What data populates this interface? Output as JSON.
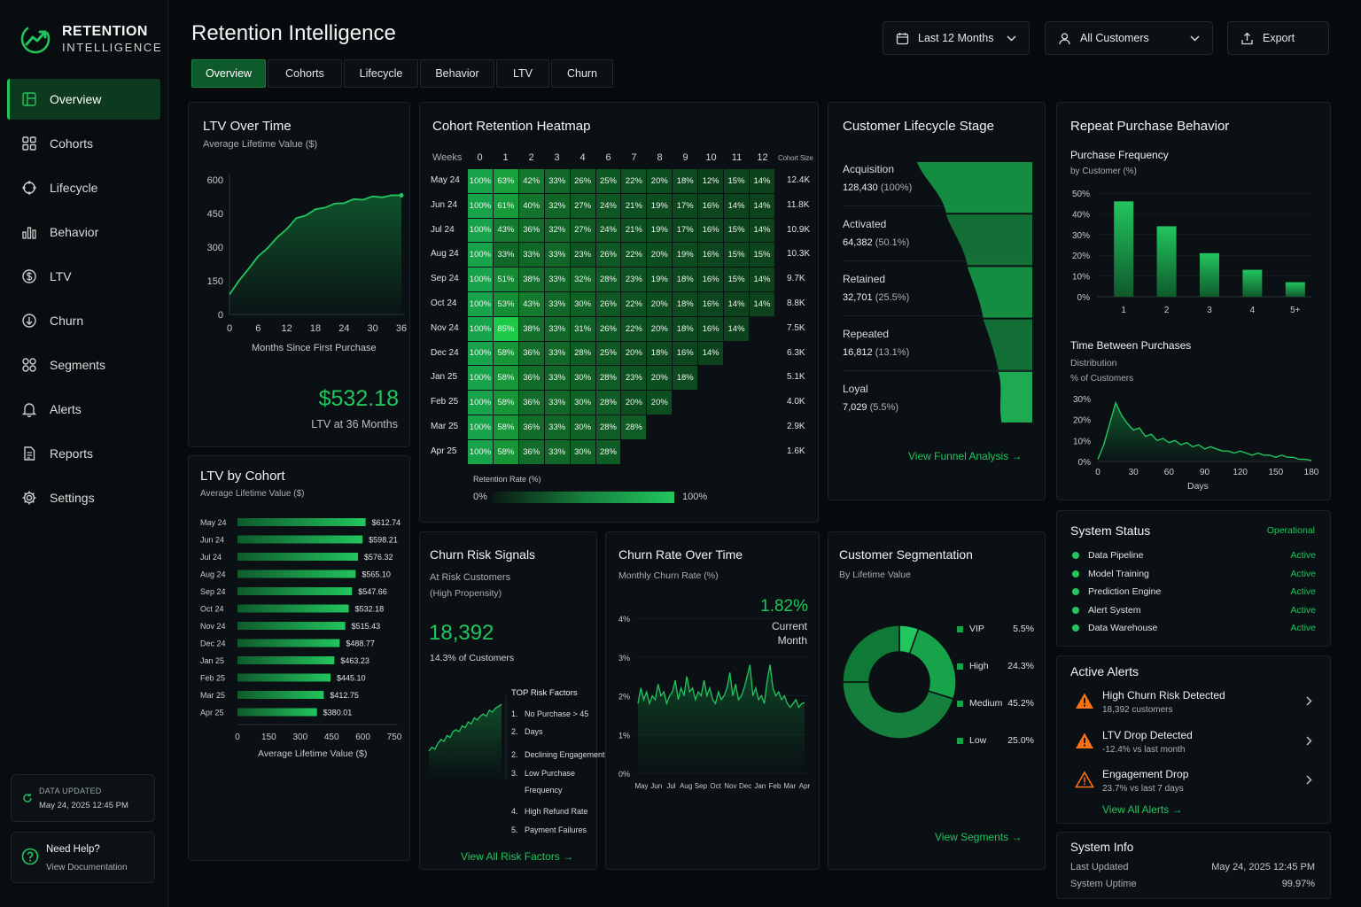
{
  "app": {
    "name_line1": "RETENTION",
    "name_line2": "INTELLIGENCE",
    "title": "Retention Intelligence"
  },
  "sidebar": {
    "items": [
      {
        "label": "Overview",
        "icon": "dashboard-icon",
        "active": true
      },
      {
        "label": "Cohorts",
        "icon": "grid-icon"
      },
      {
        "label": "Lifecycle",
        "icon": "cycle-icon"
      },
      {
        "label": "Behavior",
        "icon": "bar-chart-icon"
      },
      {
        "label": "LTV",
        "icon": "dollar-icon"
      },
      {
        "label": "Churn",
        "icon": "churn-icon"
      },
      {
        "label": "Segments",
        "icon": "segments-icon"
      },
      {
        "label": "Alerts",
        "icon": "bell-icon"
      },
      {
        "label": "Reports",
        "icon": "document-icon"
      },
      {
        "label": "Settings",
        "icon": "gear-icon"
      }
    ],
    "updated_label": "DATA UPDATED",
    "updated_value": "May 24, 2025 12:45 PM",
    "help_title": "Need Help?",
    "help_link": "View Documentation"
  },
  "header": {
    "date_filter": "Last 12 Months",
    "customer_filter": "All Customers",
    "export_label": "Export"
  },
  "tabs": [
    "Overview",
    "Cohorts",
    "Lifecycle",
    "Behavior",
    "LTV",
    "Churn"
  ],
  "ltv_time": {
    "title": "LTV Over Time",
    "subtitle": "Average Lifetime Value ($)",
    "xlabel": "Months Since First Purchase",
    "value": "$532.18",
    "value_label": "LTV at 36 Months"
  },
  "ltv_cohort": {
    "title": "LTV by Cohort",
    "subtitle": "Average Lifetime Value ($)",
    "xlabel": "Average Lifetime Value ($)"
  },
  "heatmap": {
    "title": "Cohort Retention Heatmap",
    "weeks_label": "Weeks",
    "size_label": "Cohort Size",
    "week_numbers": [
      "0",
      "1",
      "2",
      "3",
      "4",
      "6",
      "7",
      "8",
      "9",
      "10",
      "11",
      "12"
    ],
    "legend_label": "Retention Rate (%)",
    "legend_min": "0%",
    "legend_max": "100%",
    "rows": [
      {
        "cohort": "May 24",
        "size": "12.4K",
        "values": [
          100,
          63,
          42,
          33,
          26,
          25,
          22,
          20,
          18,
          12,
          15,
          14
        ]
      },
      {
        "cohort": "Jun 24",
        "size": "11.8K",
        "values": [
          100,
          61,
          40,
          32,
          27,
          24,
          21,
          19,
          17,
          16,
          14,
          14
        ]
      },
      {
        "cohort": "Jul 24",
        "size": "10.9K",
        "values": [
          100,
          43,
          36,
          32,
          27,
          24,
          21,
          19,
          17,
          16,
          15,
          14
        ]
      },
      {
        "cohort": "Aug 24",
        "size": "10.3K",
        "values": [
          100,
          33,
          33,
          33,
          23,
          26,
          22,
          20,
          19,
          16,
          15,
          15
        ]
      },
      {
        "cohort": "Sep 24",
        "size": "9.7K",
        "values": [
          100,
          51,
          38,
          33,
          32,
          28,
          23,
          19,
          18,
          16,
          15,
          14
        ]
      },
      {
        "cohort": "Oct 24",
        "size": "8.8K",
        "values": [
          100,
          53,
          43,
          33,
          30,
          26,
          22,
          20,
          18,
          16,
          14,
          14
        ]
      },
      {
        "cohort": "Nov 24",
        "size": "7.5K",
        "values": [
          100,
          85,
          38,
          33,
          31,
          26,
          22,
          20,
          18,
          16,
          14
        ]
      },
      {
        "cohort": "Dec 24",
        "size": "6.3K",
        "values": [
          100,
          58,
          36,
          33,
          28,
          25,
          20,
          18,
          16,
          14
        ]
      },
      {
        "cohort": "Jan 25",
        "size": "5.1K",
        "values": [
          100,
          58,
          36,
          33,
          30,
          28,
          23,
          20,
          18
        ]
      },
      {
        "cohort": "Feb 25",
        "size": "4.0K",
        "values": [
          100,
          58,
          36,
          33,
          30,
          28,
          20,
          20
        ]
      },
      {
        "cohort": "Mar 25",
        "size": "2.9K",
        "values": [
          100,
          58,
          36,
          33,
          30,
          28,
          28
        ]
      },
      {
        "cohort": "Apr 25",
        "size": "1.6K",
        "values": [
          100,
          58,
          36,
          33,
          30,
          28
        ]
      }
    ]
  },
  "lifecycle": {
    "title": "Customer Lifecycle Stage",
    "link": "View Funnel Analysis",
    "stages": [
      {
        "name": "Acquisition",
        "count": "128,430",
        "pct": "(100%)",
        "share": 1.0
      },
      {
        "name": "Activated",
        "count": "64,382",
        "pct": "(50.1%)",
        "share": 0.501
      },
      {
        "name": "Retained",
        "count": "32,701",
        "pct": "(25.5%)",
        "share": 0.255
      },
      {
        "name": "Repeated",
        "count": "16,812",
        "pct": "(13.1%)",
        "share": 0.131
      },
      {
        "name": "Loyal",
        "count": "7,029",
        "pct": "(5.5%)",
        "share": 0.055
      }
    ]
  },
  "repeat": {
    "title": "Repeat Purchase Behavior",
    "freq_title": "Purchase Frequency",
    "freq_sub": "by Customer (%)",
    "tbp_title": "Time Between Purchases",
    "tbp_sub1": "Distribution",
    "tbp_sub2": "% of Customers",
    "tbp_xlabel": "Days"
  },
  "churn_signals": {
    "title": "Churn Risk Signals",
    "sub1": "At Risk Customers",
    "sub2": "(High Propensity)",
    "count": "18,392",
    "share": "14.3% of Customers",
    "factors_title": "TOP Risk Factors",
    "factors": [
      {
        "n": "1.",
        "l1": "No Purchase > 45",
        "l2": "Days"
      },
      {
        "n": "2.",
        "l1": "Declining Engagement",
        "l2": ""
      },
      {
        "n": "3.",
        "l1": "Low Purchase",
        "l2": "Frequency"
      },
      {
        "n": "4.",
        "l1": "High Refund Rate",
        "l2": ""
      },
      {
        "n": "5.",
        "l1": "Payment Failures",
        "l2": ""
      }
    ],
    "link": "View All Risk Factors"
  },
  "churn_rate": {
    "title": "Churn Rate Over Time",
    "subtitle": "Monthly Churn Rate (%)",
    "current": "1.82%",
    "current_label1": "Current",
    "current_label2": "Month"
  },
  "segmentation": {
    "title": "Customer Segmentation",
    "subtitle": "By Lifetime Value",
    "link": "View Segments",
    "segments": [
      {
        "name": "VIP",
        "pct": "5.5%",
        "value": 5.5
      },
      {
        "name": "High",
        "pct": "24.3%",
        "value": 24.3
      },
      {
        "name": "Medium",
        "pct": "45.2%",
        "value": 45.2
      },
      {
        "name": "Low",
        "pct": "25.0%",
        "value": 25.0
      }
    ]
  },
  "system_status": {
    "title": "System Status",
    "overall": "Operational",
    "items": [
      {
        "name": "Data Pipeline",
        "status": "Active"
      },
      {
        "name": "Model Training",
        "status": "Active"
      },
      {
        "name": "Prediction Engine",
        "status": "Active"
      },
      {
        "name": "Alert System",
        "status": "Active"
      },
      {
        "name": "Data Warehouse",
        "status": "Active"
      }
    ]
  },
  "alerts": {
    "title": "Active Alerts",
    "link": "View All Alerts",
    "items": [
      {
        "title": "High Churn Risk Detected",
        "detail": "18,392 customers",
        "filled": true
      },
      {
        "title": "LTV Drop Detected",
        "detail": "-12.4% vs last month",
        "filled": true
      },
      {
        "title": "Engagement Drop",
        "detail": "23.7% vs last 7 days",
        "filled": false
      }
    ]
  },
  "system_info": {
    "title": "System Info",
    "last_updated_label": "Last Updated",
    "last_updated": "May 24, 2025 12:45 PM",
    "uptime_label": "System Uptime",
    "uptime": "99.97%"
  },
  "colors": {
    "accent": "#22c55e",
    "accent_dark": "#15803d",
    "background": "#070b0e",
    "card": "#0a1013",
    "warning": "#f97316"
  },
  "chart_data": [
    {
      "type": "line",
      "title": "LTV Over Time",
      "subtitle": "Average Lifetime Value ($)",
      "xlabel": "Months Since First Purchase",
      "ylabel": "",
      "xlim": [
        0,
        36
      ],
      "ylim": [
        0,
        600
      ],
      "x_ticks": [
        0,
        6,
        12,
        18,
        24,
        30,
        36
      ],
      "y_ticks": [
        0,
        150,
        300,
        450,
        600
      ],
      "x": [
        0,
        2,
        4,
        6,
        8,
        10,
        12,
        14,
        16,
        18,
        20,
        22,
        24,
        26,
        28,
        30,
        32,
        34,
        36
      ],
      "y": [
        90,
        150,
        205,
        255,
        300,
        340,
        385,
        425,
        445,
        465,
        480,
        490,
        500,
        510,
        515,
        522,
        526,
        530,
        532
      ]
    },
    {
      "type": "bar",
      "title": "LTV by Cohort",
      "subtitle": "Average Lifetime Value ($)",
      "xlabel": "Average Lifetime Value ($)",
      "xlim": [
        0,
        750
      ],
      "x_ticks": [
        0,
        150,
        300,
        450,
        600,
        750
      ],
      "categories": [
        "May 24",
        "Jun 24",
        "Jul 24",
        "Aug 24",
        "Sep 24",
        "Oct 24",
        "Nov 24",
        "Dec 24",
        "Jan 25",
        "Feb 25",
        "Mar 25",
        "Apr 25"
      ],
      "values": [
        612.74,
        598.21,
        576.32,
        565.1,
        547.66,
        532.18,
        515.43,
        488.77,
        463.23,
        445.1,
        412.75,
        380.01
      ],
      "labels": [
        "$612.74",
        "$598.21",
        "$576.32",
        "$565.10",
        "$547.66",
        "$532.18",
        "$515.43",
        "$488.77",
        "$463.23",
        "$445.10",
        "$412.75",
        "$380.01"
      ]
    },
    {
      "type": "bar",
      "title": "Purchase Frequency",
      "subtitle": "by Customer (%)",
      "categories": [
        "1",
        "2",
        "3",
        "4",
        "5+"
      ],
      "values": [
        46,
        34,
        21,
        13,
        7
      ],
      "ylim": [
        0,
        50
      ],
      "y_ticks": [
        "0%",
        "10%",
        "20%",
        "30%",
        "40%",
        "50%"
      ]
    },
    {
      "type": "area",
      "title": "Time Between Purchases",
      "subtitle": "% of Customers",
      "xlabel": "Days",
      "xlim": [
        0,
        180
      ],
      "ylim": [
        0,
        30
      ],
      "x_ticks": [
        0,
        30,
        60,
        90,
        120,
        150,
        180
      ],
      "y_ticks": [
        "0%",
        "10%",
        "20%",
        "30%"
      ],
      "x": [
        0,
        5,
        10,
        15,
        20,
        25,
        30,
        35,
        40,
        45,
        50,
        55,
        60,
        65,
        70,
        75,
        80,
        85,
        90,
        95,
        100,
        105,
        110,
        115,
        120,
        125,
        130,
        135,
        140,
        145,
        150,
        155,
        160,
        165,
        170,
        175,
        180
      ],
      "y": [
        1,
        8,
        18,
        28,
        22,
        18,
        15,
        16,
        12,
        13,
        10,
        11,
        9,
        10,
        8,
        9,
        7,
        8,
        6,
        7,
        6,
        5,
        5,
        4,
        5,
        4,
        3,
        4,
        3,
        3,
        2,
        3,
        2,
        2,
        1,
        1,
        0.5
      ]
    },
    {
      "type": "line",
      "title": "Churn Risk Signals trend",
      "x": [
        0,
        1,
        2,
        3,
        4,
        5,
        6,
        7,
        8,
        9,
        10,
        11,
        12,
        13,
        14,
        15,
        16,
        17,
        18,
        19,
        20,
        21,
        22,
        23,
        24
      ],
      "y": [
        10,
        12,
        11,
        14,
        16,
        15,
        18,
        17,
        20,
        21,
        20,
        23,
        22,
        25,
        24,
        27,
        26,
        28,
        29,
        28,
        31,
        30,
        32,
        33,
        34
      ]
    },
    {
      "type": "line",
      "title": "Churn Rate Over Time",
      "subtitle": "Monthly Churn Rate (%)",
      "ylim": [
        0,
        4
      ],
      "y_ticks": [
        "0%",
        "1%",
        "2%",
        "3%",
        "4%"
      ],
      "x_ticks": [
        "May",
        "Jun",
        "Jul",
        "Aug",
        "Sep",
        "Oct",
        "Nov",
        "Dec",
        "Jan",
        "Feb",
        "Mar",
        "Apr"
      ],
      "y": [
        1.8,
        2.2,
        1.9,
        2.1,
        1.8,
        2.0,
        1.9,
        2.3,
        2.0,
        2.1,
        1.8,
        2.0,
        2.1,
        2.4,
        1.9,
        2.2,
        2.0,
        2.5,
        2.1,
        2.2,
        1.9,
        2.1,
        2.0,
        2.4,
        2.0,
        2.2,
        1.9,
        1.8,
        2.1,
        1.9,
        2.0,
        2.2,
        2.6,
        2.0,
        2.3,
        1.9,
        2.0,
        2.2,
        2.5,
        2.8,
        2.0,
        2.2,
        1.9,
        2.0,
        1.8,
        2.4,
        2.8,
        2.2,
        2.0,
        2.1,
        1.9,
        2.0,
        1.8,
        1.7,
        1.8,
        1.9,
        1.7,
        1.8,
        1.82
      ]
    },
    {
      "type": "pie",
      "title": "Customer Segmentation",
      "categories": [
        "VIP",
        "High",
        "Medium",
        "Low"
      ],
      "values": [
        5.5,
        24.3,
        45.2,
        25.0
      ]
    }
  ]
}
